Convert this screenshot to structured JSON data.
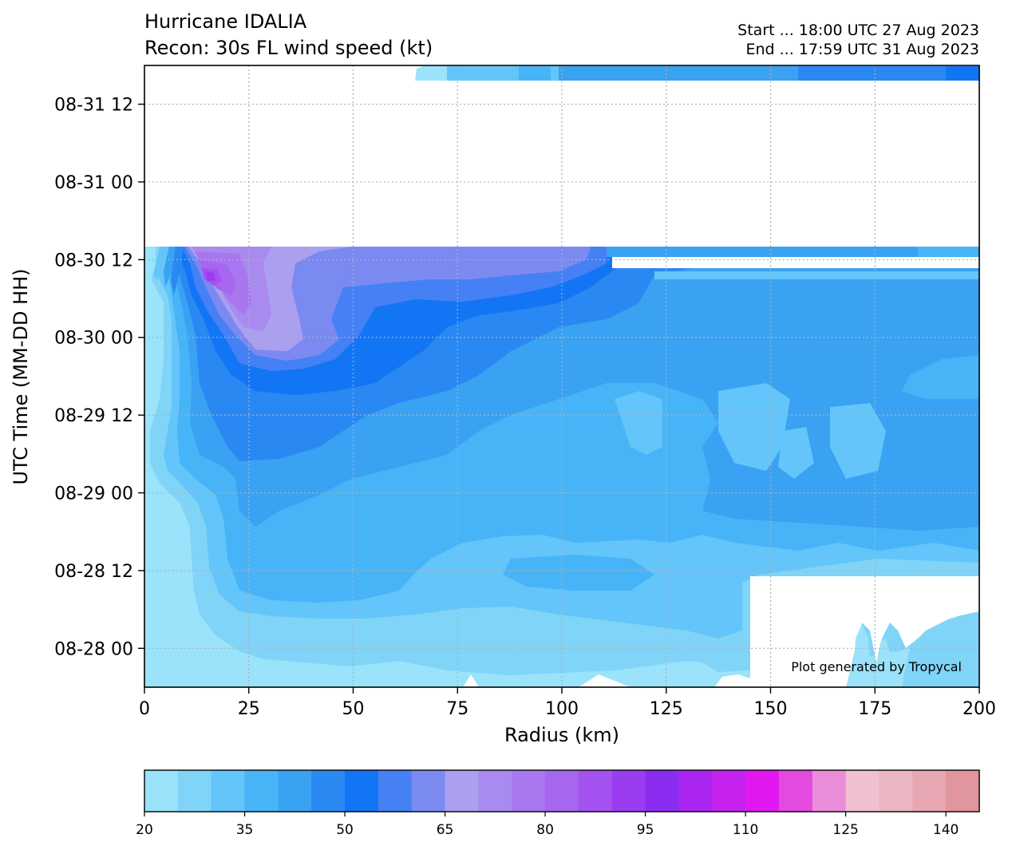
{
  "chart_data": {
    "type": "heatmap",
    "title": "Hurricane IDALIA",
    "subtitle": "Recon: 30s FL wind speed (kt)",
    "title_right": [
      "Start ... 18:00 UTC 27 Aug 2023",
      "End ... 17:59 UTC 31 Aug 2023"
    ],
    "xlabel": "Radius (km)",
    "ylabel": "UTC Time (MM-DD HH)",
    "xlim": [
      0,
      200
    ],
    "ylim": [
      "2023-08-27 18:00",
      "2023-08-31 17:59"
    ],
    "x_ticks": [
      0,
      25,
      50,
      75,
      100,
      125,
      150,
      175,
      200
    ],
    "x_tick_labels": [
      "0",
      "25",
      "50",
      "75",
      "100",
      "125",
      "150",
      "175",
      "200"
    ],
    "y_ticks": [
      "2023-08-28 00:00",
      "2023-08-28 12:00",
      "2023-08-29 00:00",
      "2023-08-29 12:00",
      "2023-08-30 00:00",
      "2023-08-30 12:00",
      "2023-08-31 00:00",
      "2023-08-31 12:00"
    ],
    "y_tick_labels": [
      "08-28 00",
      "08-28 12",
      "08-29 00",
      "08-29 12",
      "08-30 00",
      "08-30 12",
      "08-31 00",
      "08-31 12"
    ],
    "grid": true,
    "annotation": "Plot generated by Tropycal",
    "colorbar": {
      "levels": [
        20,
        25,
        30,
        35,
        40,
        45,
        50,
        55,
        60,
        65,
        70,
        75,
        80,
        85,
        90,
        95,
        100,
        105,
        110,
        115,
        120,
        125,
        130,
        135,
        140,
        145
      ],
      "colors": [
        "#9ae3fa",
        "#80d4f8",
        "#63c5fa",
        "#47b4f8",
        "#3aa2f2",
        "#2a88f3",
        "#1275f4",
        "#4680f5",
        "#7b8af1",
        "#ab9ff0",
        "#a98aef",
        "#a877ef",
        "#a666ef",
        "#a553f0",
        "#9a3df1",
        "#8b2df0",
        "#aa26f0",
        "#c622ef",
        "#e119f0",
        "#e34ae0",
        "#ea8cd9",
        "#f0c0d1",
        "#eab6c2",
        "#e6a6b2",
        "#e0959f"
      ],
      "tick_values": [
        20,
        35,
        50,
        65,
        80,
        95,
        110,
        125,
        140
      ],
      "tick_labels": [
        "20",
        "35",
        "50",
        "65",
        "80",
        "95",
        "110",
        "125",
        "140"
      ]
    },
    "wind_field_kt": {
      "description_units": "radius km vs time; approximate flight-level wind speed contours",
      "times": [
        "2023-08-27 18:00",
        "2023-08-28 00:00",
        "2023-08-28 12:00",
        "2023-08-29 00:00",
        "2023-08-29 12:00",
        "2023-08-30 00:00",
        "2023-08-30 06:00",
        "2023-08-30 13:00",
        "2023-08-31 17:00"
      ],
      "radii": [
        0,
        5,
        10,
        17,
        25,
        35,
        50,
        75,
        100,
        125,
        150,
        175,
        200
      ],
      "values": [
        [
          null,
          null,
          null,
          null,
          null,
          null,
          22,
          22,
          22,
          22,
          null,
          27,
          30
        ],
        [
          null,
          null,
          null,
          22,
          25,
          27,
          30,
          30,
          30,
          27,
          null,
          30,
          32
        ],
        [
          null,
          null,
          27,
          32,
          35,
          38,
          40,
          38,
          35,
          32,
          32,
          32,
          35
        ],
        [
          null,
          null,
          32,
          38,
          42,
          42,
          42,
          40,
          38,
          35,
          38,
          38,
          40
        ],
        [
          null,
          30,
          40,
          48,
          50,
          48,
          45,
          42,
          40,
          35,
          38,
          38,
          40
        ],
        [
          null,
          35,
          50,
          65,
          65,
          60,
          52,
          50,
          45,
          40,
          42,
          40,
          42
        ],
        [
          null,
          40,
          62,
          80,
          78,
          70,
          55,
          52,
          48,
          42,
          42,
          40,
          42
        ],
        [
          null,
          45,
          60,
          70,
          68,
          62,
          58,
          55,
          48,
          42,
          42,
          42,
          40
        ],
        [
          null,
          null,
          null,
          null,
          null,
          null,
          null,
          30,
          35,
          38,
          42,
          45,
          50
        ]
      ]
    }
  }
}
